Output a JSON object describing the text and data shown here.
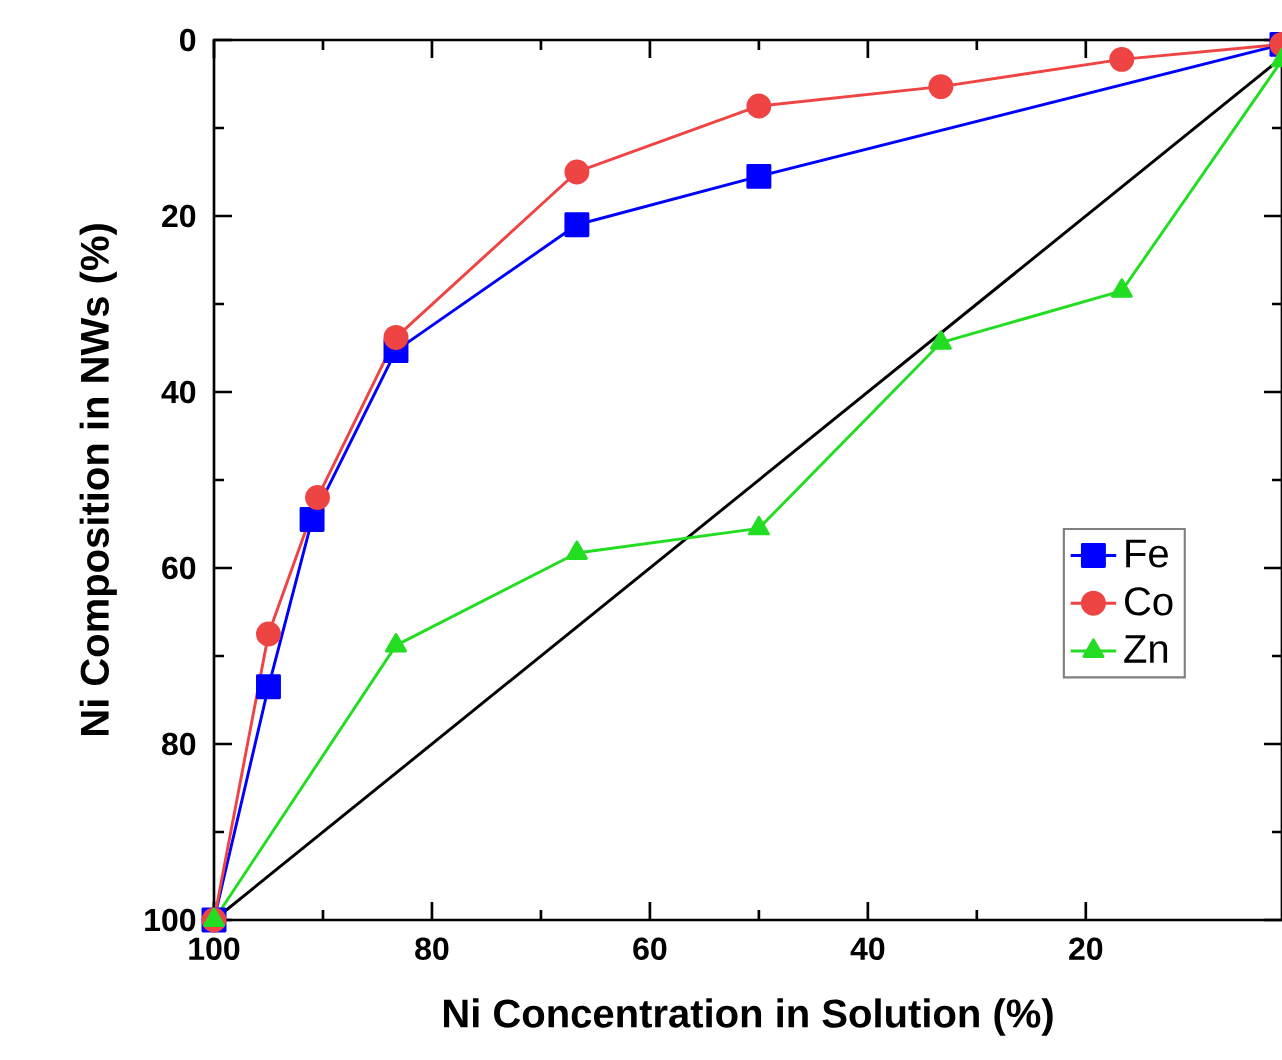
{
  "chart_data": {
    "type": "line",
    "xlabel": "Ni Concentration in Solution (%)",
    "ylabel": "Ni Composition in NWs (%)",
    "xlim": [
      100,
      2
    ],
    "ylim": [
      100,
      0
    ],
    "xticks": [
      100,
      80,
      60,
      40,
      20
    ],
    "yticks": [
      0,
      20,
      40,
      60,
      80,
      100
    ],
    "legend": "right",
    "grid": false,
    "series": [
      {
        "name": "Fe",
        "color": "#0000ff",
        "marker": "square",
        "x": [
          100,
          95,
          91,
          83.3,
          66.7,
          50,
          2
        ],
        "values": [
          100,
          73.5,
          54.5,
          35.3,
          21,
          15.5,
          0.5
        ]
      },
      {
        "name": "Co",
        "color": "#ef4444",
        "marker": "circle",
        "x": [
          100,
          95,
          90.5,
          83.3,
          66.7,
          50,
          33.3,
          16.7,
          2
        ],
        "values": [
          100,
          67.5,
          52,
          33.8,
          15,
          7.5,
          5.3,
          2.2,
          0.5
        ]
      },
      {
        "name": "Zn",
        "color": "#22dd22",
        "marker": "triangle",
        "x": [
          100,
          83.3,
          66.7,
          50,
          33.3,
          16.7,
          2
        ],
        "values": [
          100,
          68.8,
          58.3,
          55.5,
          34.4,
          28.5,
          2.3
        ]
      },
      {
        "color": "#000000",
        "x": [
          100,
          2
        ],
        "values": [
          100,
          2
        ]
      }
    ]
  }
}
